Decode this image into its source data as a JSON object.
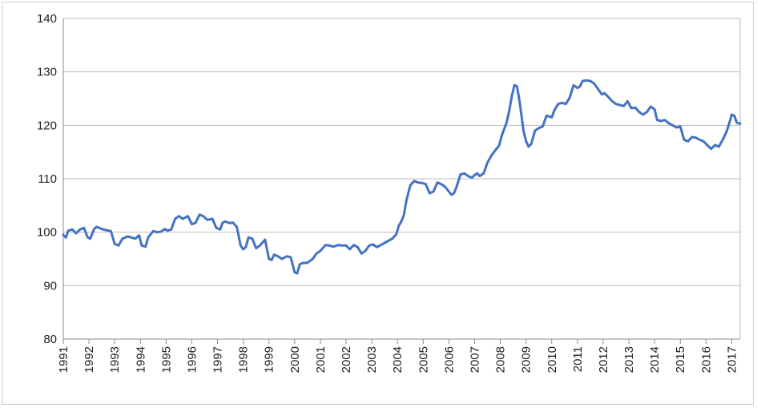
{
  "chart_data": {
    "type": "line",
    "title": "",
    "xlabel": "",
    "ylabel": "",
    "ylim": [
      80,
      140
    ],
    "y_ticks": [
      "80",
      "90",
      "100",
      "110",
      "120",
      "130",
      "140"
    ],
    "x_ticks": [
      "1991",
      "1992",
      "1993",
      "1994",
      "1995",
      "1996",
      "1997",
      "1998",
      "1999",
      "2000",
      "2001",
      "2002",
      "2003",
      "2004",
      "2005",
      "2006",
      "2007",
      "2008",
      "2009",
      "2010",
      "2011",
      "2012",
      "2013",
      "2014",
      "2015",
      "2016",
      "2017"
    ],
    "xlim": [
      1991.0,
      2017.33
    ],
    "grid": true,
    "legend": "none",
    "line_color": "#4472c4",
    "series": [
      {
        "x": [
          1991.0,
          1991.1,
          1991.2,
          1991.35,
          1991.5,
          1991.65,
          1991.8,
          1991.95,
          1992.05,
          1992.2,
          1992.3,
          1992.5,
          1992.65,
          1992.85,
          1993.0,
          1993.15,
          1993.3,
          1993.5,
          1993.65,
          1993.8,
          1993.95,
          1994.05,
          1994.2,
          1994.3,
          1994.5,
          1994.65,
          1994.8,
          1994.95,
          1995.05,
          1995.2,
          1995.35,
          1995.5,
          1995.65,
          1995.85,
          1996.0,
          1996.15,
          1996.3,
          1996.45,
          1996.6,
          1996.8,
          1996.95,
          1997.1,
          1997.2,
          1997.3,
          1997.45,
          1997.6,
          1997.75,
          1997.9,
          1998.0,
          1998.1,
          1998.2,
          1998.35,
          1998.5,
          1998.65,
          1998.85,
          1999.0,
          1999.1,
          1999.2,
          1999.35,
          1999.5,
          1999.7,
          1999.85,
          2000.0,
          2000.1,
          2000.2,
          2000.3,
          2000.5,
          2000.7,
          2000.85,
          2001.0,
          2001.2,
          2001.35,
          2001.5,
          2001.7,
          2001.85,
          2002.0,
          2002.15,
          2002.3,
          2002.45,
          2002.6,
          2002.75,
          2002.9,
          2003.05,
          2003.2,
          2003.35,
          2003.5,
          2003.65,
          2003.8,
          2003.95,
          2004.05,
          2004.15,
          2004.25,
          2004.35,
          2004.5,
          2004.65,
          2004.8,
          2004.95,
          2005.1,
          2005.25,
          2005.4,
          2005.55,
          2005.7,
          2005.85,
          2006.0,
          2006.1,
          2006.2,
          2006.3,
          2006.45,
          2006.6,
          2006.75,
          2006.9,
          2007.0,
          2007.1,
          2007.2,
          2007.35,
          2007.5,
          2007.65,
          2007.8,
          2007.95,
          2008.05,
          2008.15,
          2008.25,
          2008.35,
          2008.45,
          2008.55,
          2008.65,
          2008.75,
          2008.9,
          2009.0,
          2009.1,
          2009.2,
          2009.35,
          2009.5,
          2009.65,
          2009.8,
          2010.0,
          2010.1,
          2010.25,
          2010.4,
          2010.55,
          2010.7,
          2010.85,
          2011.0,
          2011.1,
          2011.2,
          2011.35,
          2011.5,
          2011.65,
          2011.8,
          2011.95,
          2012.05,
          2012.2,
          2012.35,
          2012.5,
          2012.65,
          2012.8,
          2012.95,
          2013.1,
          2013.25,
          2013.4,
          2013.55,
          2013.7,
          2013.85,
          2014.0,
          2014.1,
          2014.25,
          2014.4,
          2014.55,
          2014.7,
          2014.85,
          2015.0,
          2015.15,
          2015.3,
          2015.45,
          2015.6,
          2015.75,
          2015.9,
          2016.05,
          2016.2,
          2016.35,
          2016.5,
          2016.65,
          2016.8,
          2016.9,
          2017.0,
          2017.1,
          2017.2,
          2017.33
        ],
        "values": [
          99.5,
          99.0,
          100.3,
          100.5,
          99.8,
          100.5,
          100.8,
          99.0,
          98.8,
          100.6,
          101.0,
          100.6,
          100.4,
          100.2,
          97.8,
          97.5,
          98.8,
          99.2,
          99.0,
          98.8,
          99.4,
          97.5,
          97.3,
          99.0,
          100.2,
          100.0,
          100.1,
          100.6,
          100.3,
          100.5,
          102.5,
          103.0,
          102.5,
          103.0,
          101.5,
          101.8,
          103.3,
          103.0,
          102.3,
          102.5,
          100.8,
          100.5,
          101.8,
          102.0,
          101.7,
          101.8,
          101.0,
          97.5,
          96.8,
          97.2,
          99.0,
          98.8,
          97.0,
          97.5,
          98.6,
          95.0,
          94.8,
          95.8,
          95.5,
          95.0,
          95.5,
          95.3,
          92.5,
          92.3,
          94.0,
          94.2,
          94.3,
          95.0,
          96.0,
          96.5,
          97.6,
          97.5,
          97.3,
          97.6,
          97.5,
          97.5,
          96.8,
          97.6,
          97.2,
          96.0,
          96.5,
          97.5,
          97.7,
          97.2,
          97.6,
          98.0,
          98.4,
          98.8,
          99.6,
          101.2,
          102.0,
          103.2,
          106.0,
          108.8,
          109.6,
          109.3,
          109.2,
          109.0,
          107.3,
          107.6,
          109.3,
          109.0,
          108.5,
          107.6,
          107.0,
          107.3,
          108.5,
          110.8,
          111.0,
          110.5,
          110.2,
          110.7,
          111.0,
          110.5,
          111.0,
          113.0,
          114.3,
          115.3,
          116.2,
          118.0,
          119.3,
          120.6,
          122.8,
          125.5,
          127.5,
          127.3,
          124.5,
          119.0,
          117.0,
          116.0,
          116.5,
          119.0,
          119.5,
          119.8,
          121.8,
          121.5,
          122.8,
          124.0,
          124.2,
          124.0,
          125.2,
          127.5,
          127.0,
          127.3,
          128.3,
          128.4,
          128.3,
          127.8,
          126.8,
          125.8,
          126.0,
          125.3,
          124.5,
          124.0,
          123.8,
          123.6,
          124.5,
          123.2,
          123.3,
          122.5,
          122.0,
          122.5,
          123.5,
          123.0,
          121.0,
          120.8,
          121.0,
          120.4,
          120.0,
          119.6,
          119.8,
          117.3,
          117.0,
          117.8,
          117.7,
          117.3,
          117.0,
          116.3,
          115.6,
          116.3,
          116.0,
          117.3,
          118.8,
          120.3,
          122.0,
          121.8,
          120.5,
          120.3
        ]
      }
    ]
  }
}
